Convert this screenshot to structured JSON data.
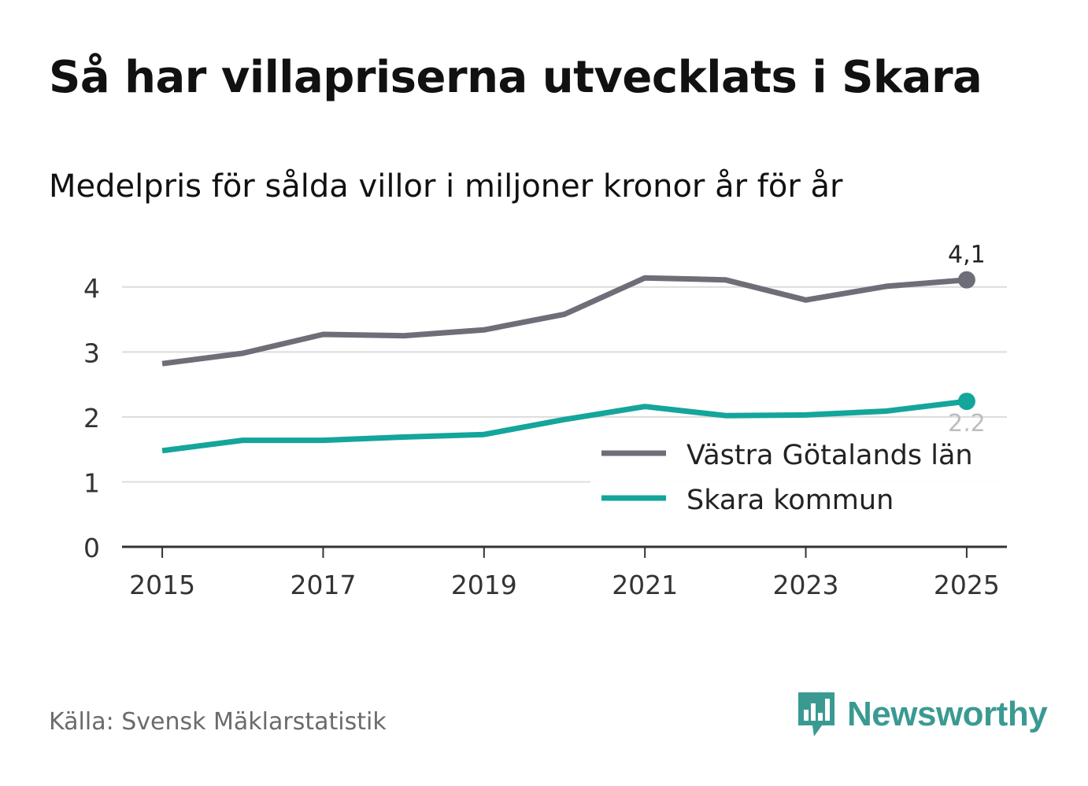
{
  "title": "Så har villapriserna utvecklats i Skara",
  "subtitle": "Medelpris för sålda villor i miljoner kronor år för år",
  "source": "Källa: Svensk Mäklarstatistik",
  "brand": {
    "name": "Newsworthy",
    "icon": "newsworthy-logo-icon"
  },
  "colors": {
    "series_region": "#6e6e78",
    "series_municipality": "#14a59b",
    "grid": "#dcdcdc",
    "axis": "#333333"
  },
  "chart_data": {
    "type": "line",
    "x": [
      2015,
      2016,
      2017,
      2018,
      2019,
      2020,
      2021,
      2022,
      2023,
      2024,
      2025
    ],
    "xticks": [
      "2015",
      "2017",
      "2019",
      "2021",
      "2023",
      "2025"
    ],
    "yticks": [
      "0",
      "1",
      "2",
      "3",
      "4"
    ],
    "ylim": [
      0,
      4.3
    ],
    "xlim": [
      2014.5,
      2025.5
    ],
    "grid": true,
    "legend_position": "bottom-right",
    "series": [
      {
        "name": "Västra Götalands län",
        "color": "#6e6e78",
        "values": [
          2.82,
          2.98,
          3.27,
          3.25,
          3.34,
          3.58,
          4.14,
          4.11,
          3.8,
          4.01,
          4.11
        ],
        "end_label": "4,1"
      },
      {
        "name": "Skara kommun",
        "color": "#14a59b",
        "values": [
          1.48,
          1.64,
          1.64,
          1.69,
          1.73,
          1.96,
          2.16,
          2.02,
          2.03,
          2.09,
          2.24
        ],
        "end_label": "2,2"
      }
    ]
  }
}
